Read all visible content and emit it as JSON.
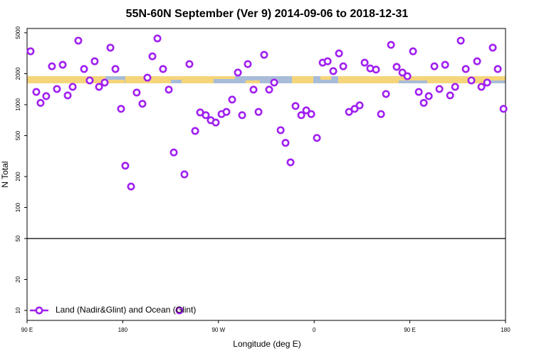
{
  "chart_data": {
    "type": "scatter",
    "title": "55N-60N September (Ver 9)   2014-09-06 to 2018-12-31",
    "x_label": "Longitude (deg E)",
    "y_label": "N Total",
    "log_y": true,
    "legend": "bottom-left",
    "reference_line": 50,
    "xlim": [
      90,
      540
    ],
    "ylim": [
      8,
      5500
    ],
    "xticks": [
      {
        "value": 90,
        "label": "90 E"
      },
      {
        "value": 180,
        "label": "180"
      },
      {
        "value": 270,
        "label": "90 W"
      },
      {
        "value": 360,
        "label": "0"
      },
      {
        "value": 450,
        "label": "90 E"
      },
      {
        "value": 540,
        "label": "180"
      }
    ],
    "yticks": [
      10,
      20,
      50,
      100,
      200,
      500,
      1000,
      2000,
      5000
    ],
    "series": [
      {
        "name": "Land (Nadir&Glint) and Ocean (Glint)",
        "color": "#a020f0",
        "x": [
          93.3,
          98.7,
          102.7,
          108,
          113.4,
          118.1,
          123.5,
          128.2,
          132.9,
          138.2,
          143.6,
          148.9,
          153.6,
          157.7,
          163,
          168.4,
          173.1,
          178.4,
          182.4,
          187.8,
          193.1,
          198.5,
          203.2,
          207.9,
          212.6,
          217.9,
          223.3,
          228,
          233.3,
          238,
          242.7,
          248.1,
          252.8,
          258.1,
          262.8,
          267.5,
          272.9,
          277.5,
          282.9,
          288.3,
          292.3,
          297.6,
          303,
          307.7,
          313,
          317.7,
          322.4,
          328.5,
          333.1,
          337.8,
          342.5,
          347.9,
          352.6,
          357.3,
          362.6,
          368,
          372.7,
          378,
          383.4,
          387.4,
          392.8,
          398.1,
          402.8,
          407.5,
          412.8,
          418.2,
          422.9,
          427.6,
          432.3,
          437.6,
          443,
          447.7,
          453,
          458.4,
          463.1,
          467.8,
          473.1,
          477.8,
          483.2,
          487.9,
          492.6,
          497.9,
          502.6,
          507.9,
          513.3,
          517.3,
          522.7,
          528,
          532.7,
          538.1
        ],
        "values": [
          3300,
          1330,
          1040,
          1210,
          2360,
          1420,
          2440,
          1230,
          1490,
          4190,
          2220,
          1720,
          2640,
          1490,
          1640,
          3580,
          2220,
          910,
          255,
          160,
          1310,
          1020,
          1830,
          2950,
          4400,
          2220,
          1400,
          343,
          10,
          210,
          2480,
          555,
          840,
          790,
          706,
          670,
          810,
          850,
          1120,
          2050,
          790,
          2480,
          1400,
          850,
          3050,
          1400,
          1640,
          565,
          425,
          275,
          970,
          790,
          880,
          810,
          475,
          2560,
          2640,
          2120,
          3150,
          2360,
          850,
          910,
          985,
          2560,
          2250,
          2190,
          810,
          1270,
          3810,
          2330,
          2050,
          1890,
          3300,
          1330,
          1040,
          1210,
          2360,
          1420,
          2440,
          1230,
          1490,
          4190,
          2220,
          1720,
          2640,
          1490,
          1640,
          3580,
          2220,
          910
        ]
      }
    ]
  }
}
